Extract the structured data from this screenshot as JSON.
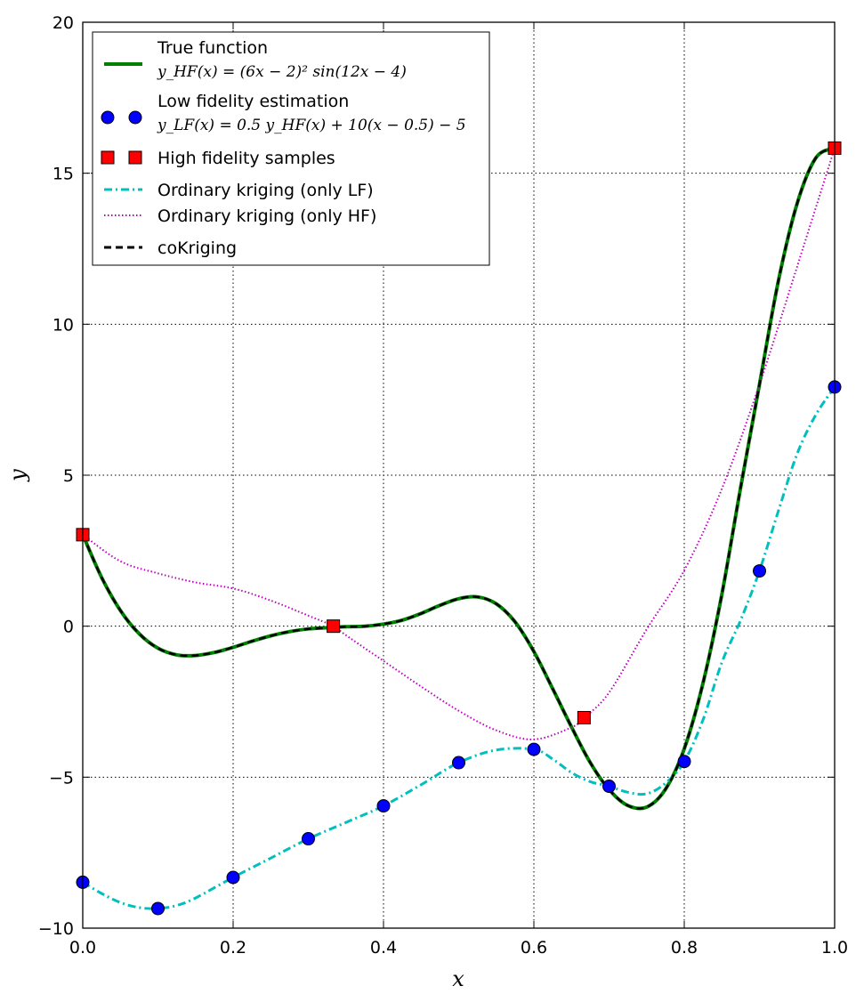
{
  "chart_data": {
    "type": "line",
    "xlabel": "x",
    "ylabel": "y",
    "xlim": [
      0.0,
      1.0
    ],
    "ylim": [
      -10,
      20
    ],
    "x_ticks": [
      0.0,
      0.2,
      0.4,
      0.6,
      0.8,
      1.0
    ],
    "x_tick_labels": [
      "0.0",
      "0.2",
      "0.4",
      "0.6",
      "0.8",
      "1.0"
    ],
    "y_ticks": [
      -10,
      -5,
      0,
      5,
      10,
      15,
      20
    ],
    "y_tick_labels": [
      "−10",
      "−5",
      "0",
      "5",
      "10",
      "15",
      "20"
    ],
    "grid": true,
    "legend_position": "top-left",
    "colors": {
      "true_function": "#008000",
      "low_fidelity": "#0000ff",
      "high_fidelity": "#ff0000",
      "kriging_lf": "#00bfbf",
      "kriging_hf": "#bf00bf",
      "cokriging": "#000000"
    },
    "legend": [
      {
        "key": "true_function",
        "label": "True function",
        "formula": "y_HF(x) = (6x − 2)² sin(12x − 4)",
        "marker": "line"
      },
      {
        "key": "low_fidelity",
        "label": "Low fidelity estimation",
        "formula": "y_LF(x) = 0.5 y_HF(x) + 10(x − 0.5) − 5",
        "marker": "circle"
      },
      {
        "key": "high_fidelity",
        "label": "High fidelity samples",
        "marker": "square"
      },
      {
        "key": "kriging_lf",
        "label": "Ordinary kriging (only LF)",
        "marker": "dashdot"
      },
      {
        "key": "kriging_hf",
        "label": "Ordinary kriging (only HF)",
        "marker": "dotted"
      },
      {
        "key": "cokriging",
        "label": "coKriging",
        "marker": "dashed"
      }
    ],
    "series": [
      {
        "key": "true_function",
        "style": "solid",
        "x": [
          0,
          0.025,
          0.05,
          0.075,
          0.1,
          0.125,
          0.15,
          0.175,
          0.2,
          0.225,
          0.25,
          0.275,
          0.3,
          0.325,
          0.35,
          0.375,
          0.4,
          0.425,
          0.45,
          0.475,
          0.5,
          0.525,
          0.55,
          0.575,
          0.6,
          0.625,
          0.65,
          0.675,
          0.7,
          0.725,
          0.75,
          0.775,
          0.8,
          0.825,
          0.85,
          0.875,
          0.9,
          0.925,
          0.95,
          0.975,
          1.0
        ],
        "y": [
          3.03,
          1.62,
          0.52,
          -0.25,
          -0.73,
          -0.95,
          -0.97,
          -0.87,
          -0.7,
          -0.5,
          -0.32,
          -0.18,
          -0.09,
          -0.05,
          -0.02,
          0.0,
          0.07,
          0.2,
          0.42,
          0.69,
          0.91,
          0.97,
          0.74,
          0.14,
          -0.84,
          -2.07,
          -3.34,
          -4.52,
          -5.41,
          -5.94,
          -5.99,
          -5.4,
          -4.06,
          -1.88,
          1.06,
          4.6,
          8.0,
          11.41,
          13.99,
          15.51,
          15.83
        ]
      },
      {
        "key": "low_fidelity",
        "style": "markers",
        "x": [
          0.0,
          0.1,
          0.2,
          0.3,
          0.4,
          0.5,
          0.6,
          0.7,
          0.8,
          0.9,
          1.0
        ],
        "y": [
          -8.48,
          -9.35,
          -8.32,
          -7.04,
          -5.95,
          -4.52,
          -4.08,
          -5.3,
          -4.48,
          1.83,
          7.92
        ]
      },
      {
        "key": "high_fidelity",
        "style": "markers",
        "x": [
          0.0,
          0.3333,
          0.6667,
          1.0
        ],
        "y": [
          3.03,
          0.0,
          -3.03,
          15.83
        ]
      },
      {
        "key": "kriging_lf",
        "style": "dashdot",
        "x": [
          0.0,
          0.025,
          0.05,
          0.075,
          0.1,
          0.125,
          0.15,
          0.2,
          0.25,
          0.3,
          0.35,
          0.4,
          0.45,
          0.5,
          0.55,
          0.6,
          0.625,
          0.65,
          0.675,
          0.7,
          0.725,
          0.75,
          0.775,
          0.8,
          0.825,
          0.85,
          0.875,
          0.9,
          0.925,
          0.95,
          0.975,
          1.0
        ],
        "y": [
          -8.48,
          -8.85,
          -9.15,
          -9.32,
          -9.35,
          -9.25,
          -9.0,
          -8.32,
          -7.68,
          -7.04,
          -6.5,
          -5.95,
          -5.25,
          -4.52,
          -4.1,
          -4.08,
          -4.4,
          -4.85,
          -5.15,
          -5.3,
          -5.5,
          -5.55,
          -5.2,
          -4.48,
          -3.1,
          -1.2,
          0.2,
          1.83,
          3.8,
          5.7,
          7.0,
          7.92
        ]
      },
      {
        "key": "kriging_hf",
        "style": "dotted",
        "x": [
          0.0,
          0.05,
          0.1,
          0.15,
          0.2,
          0.25,
          0.3,
          0.3333,
          0.35,
          0.4,
          0.45,
          0.5,
          0.55,
          0.6,
          0.65,
          0.6667,
          0.7,
          0.75,
          0.8,
          0.85,
          0.9,
          0.95,
          1.0
        ],
        "y": [
          3.03,
          2.15,
          1.75,
          1.45,
          1.25,
          0.85,
          0.35,
          0.0,
          -0.3,
          -1.15,
          -2.0,
          -2.8,
          -3.45,
          -3.75,
          -3.35,
          -3.03,
          -2.2,
          -0.1,
          1.85,
          4.55,
          8.0,
          11.9,
          15.83
        ]
      },
      {
        "key": "cokriging",
        "style": "dashed",
        "x": [
          0,
          0.025,
          0.05,
          0.075,
          0.1,
          0.125,
          0.15,
          0.175,
          0.2,
          0.225,
          0.25,
          0.275,
          0.3,
          0.325,
          0.35,
          0.375,
          0.4,
          0.425,
          0.45,
          0.475,
          0.5,
          0.525,
          0.55,
          0.575,
          0.6,
          0.625,
          0.65,
          0.675,
          0.7,
          0.725,
          0.75,
          0.775,
          0.8,
          0.825,
          0.85,
          0.875,
          0.9,
          0.925,
          0.95,
          0.975,
          1.0
        ],
        "y": [
          3.03,
          1.62,
          0.52,
          -0.25,
          -0.73,
          -0.95,
          -0.97,
          -0.87,
          -0.7,
          -0.5,
          -0.32,
          -0.18,
          -0.09,
          -0.05,
          -0.02,
          0.0,
          0.07,
          0.2,
          0.42,
          0.69,
          0.91,
          0.97,
          0.74,
          0.14,
          -0.84,
          -2.07,
          -3.34,
          -4.52,
          -5.41,
          -5.94,
          -5.99,
          -5.4,
          -4.06,
          -1.88,
          1.06,
          4.6,
          8.0,
          11.41,
          13.99,
          15.51,
          15.83
        ]
      }
    ]
  }
}
